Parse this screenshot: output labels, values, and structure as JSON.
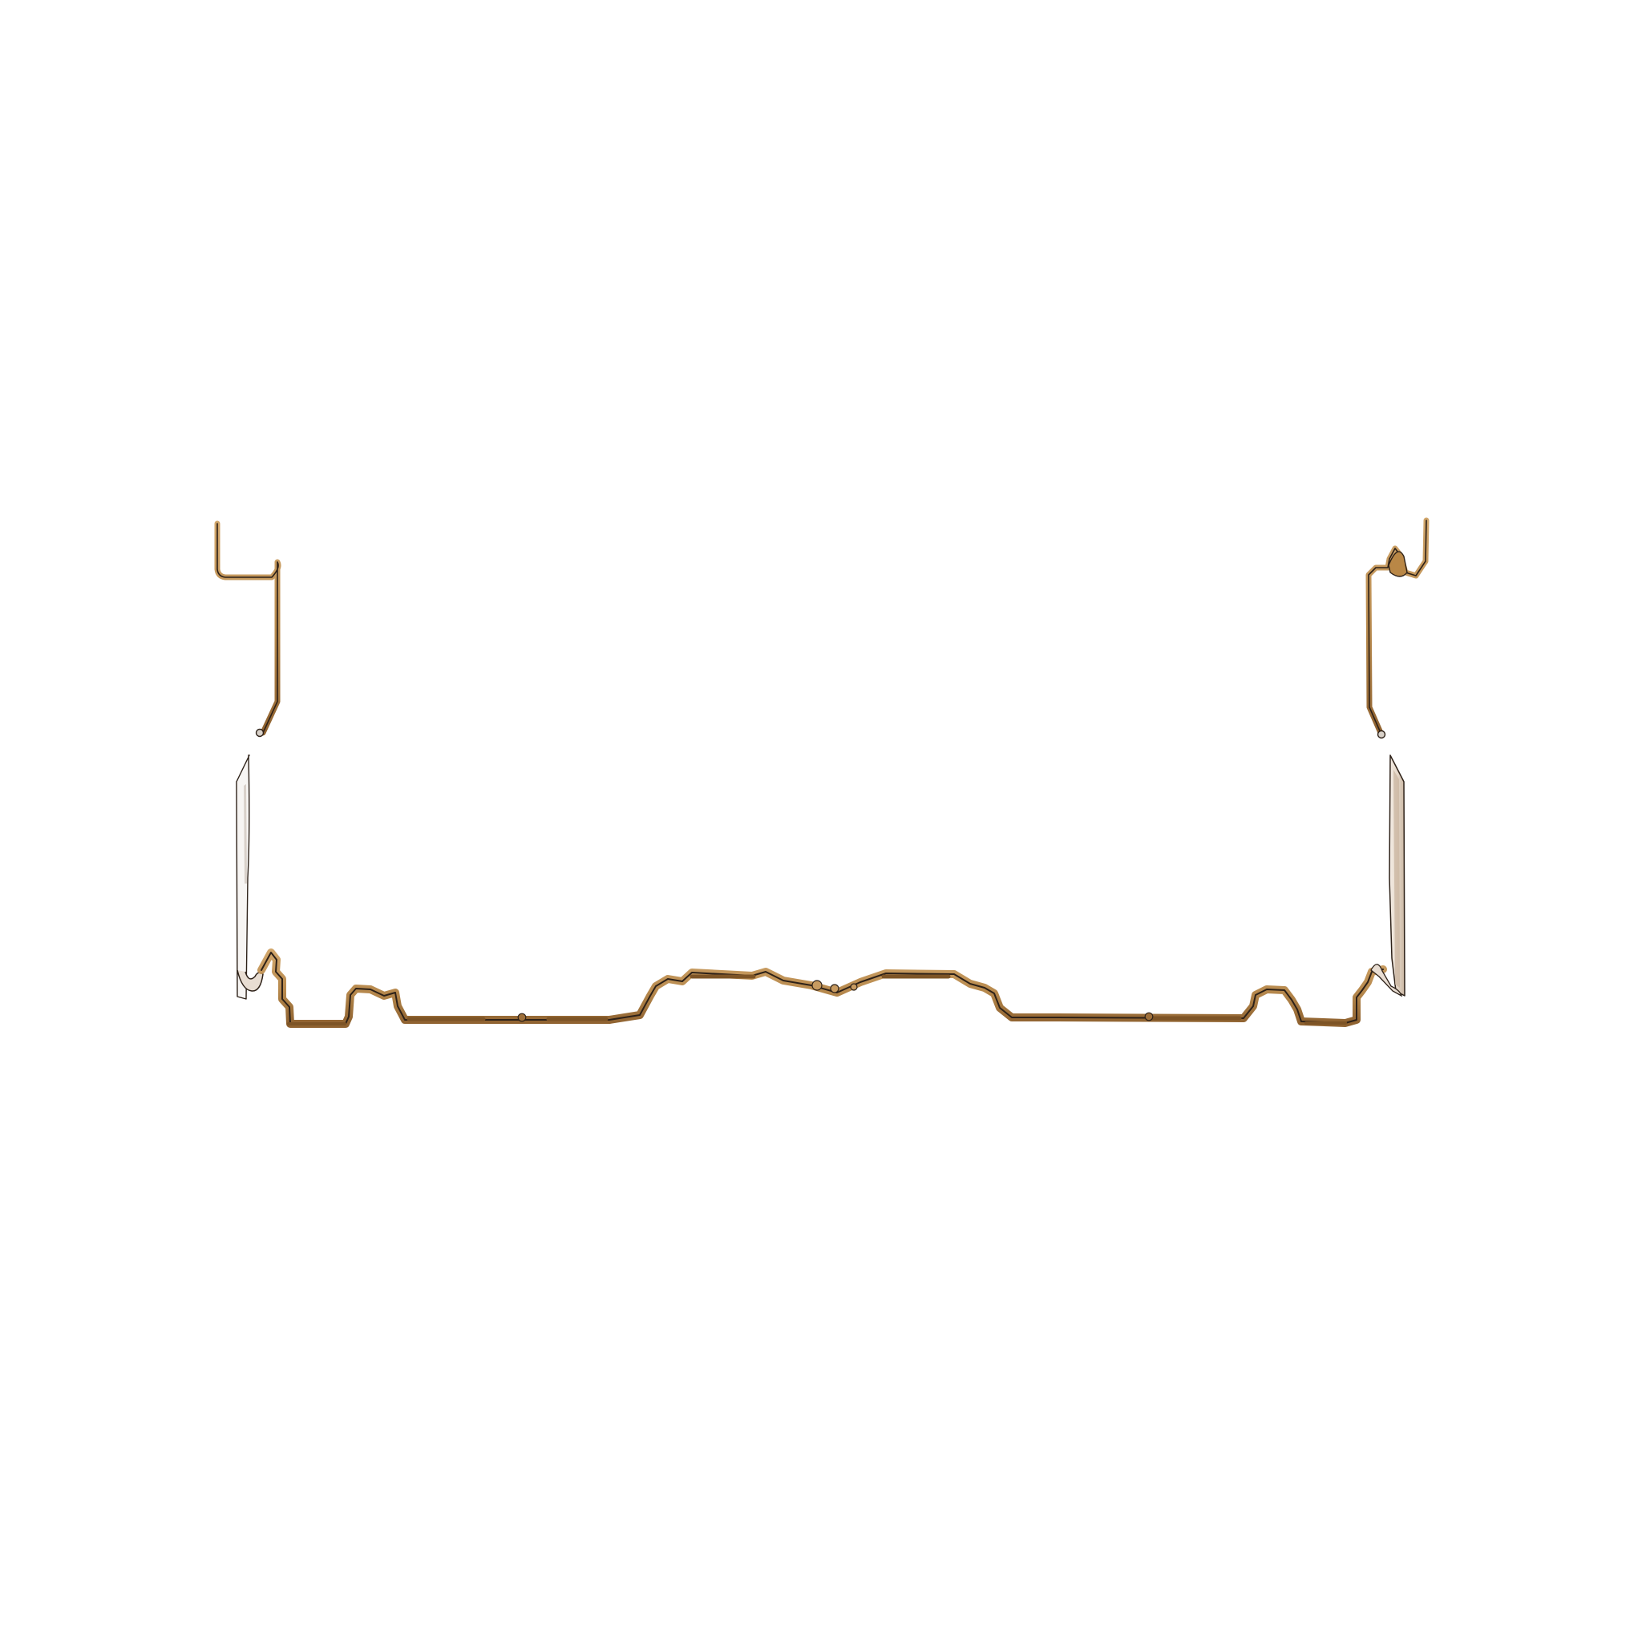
{
  "subject": {
    "icon": "profile-cutout-outline"
  },
  "colors": {
    "background": "#ffffff",
    "profile_main": "#b7894d",
    "profile_dark": "#7d5426",
    "profile_outline": "#2d2118",
    "panel_light": "#e6d8c6",
    "panel_shadow": "#c7b29d"
  }
}
